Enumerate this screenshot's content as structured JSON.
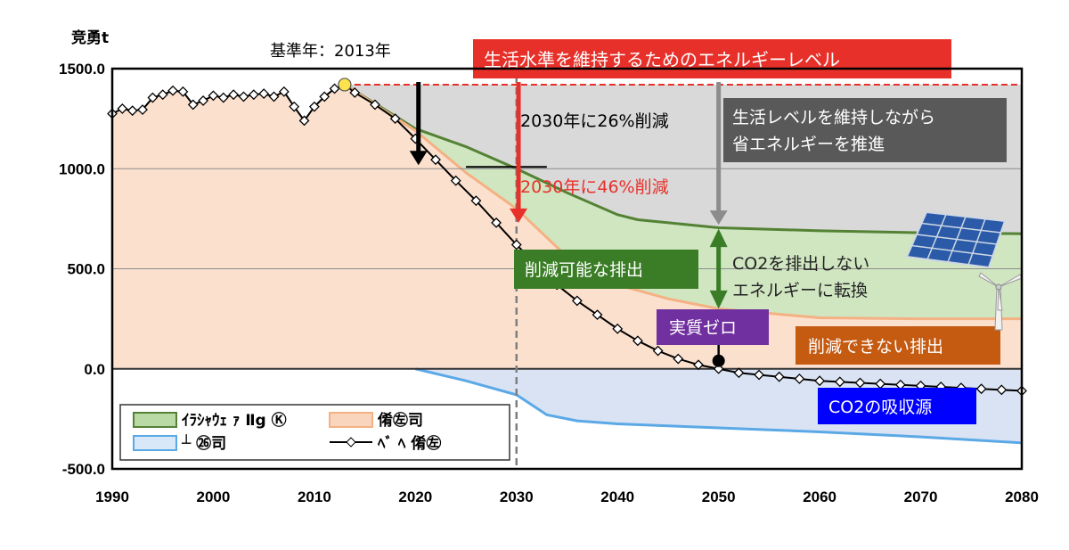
{
  "chart_data": {
    "type": "area",
    "ylabel": "竞勇t",
    "base_year_label": "基準年：2013年",
    "ylim": [
      -500,
      1500
    ],
    "xlim": [
      1990,
      2080
    ],
    "y_ticks": [
      "1500.0",
      "1000.0",
      "500.0",
      "0.0",
      "-500.0"
    ],
    "y_tick_values": [
      1500,
      1000,
      500,
      0,
      -500
    ],
    "x_ticks": [
      "1990",
      "2000",
      "2010",
      "2020",
      "2030",
      "2040",
      "2050",
      "2060",
      "2070",
      "2080"
    ],
    "x_tick_values": [
      1990,
      2000,
      2010,
      2020,
      2030,
      2040,
      2050,
      2060,
      2070,
      2080
    ],
    "grid": "horizontal",
    "series": [
      {
        "name": "ｲﾗｼｬｳｪ ｧ Ⅱg Ⓚ",
        "color": "#a9d18e",
        "x": [
          2013,
          2020,
          2025,
          2030,
          2035,
          2040,
          2042,
          2050,
          2060,
          2070,
          2080
        ],
        "values": [
          1420,
          1200,
          1110,
          1000,
          880,
          770,
          745,
          705,
          690,
          680,
          675
        ]
      },
      {
        "name": "倄㊧司",
        "color": "#f8cbad",
        "x": [
          1990,
          1991,
          1992,
          1993,
          1994,
          1995,
          1996,
          1997,
          1998,
          1999,
          2000,
          2001,
          2002,
          2003,
          2004,
          2005,
          2006,
          2007,
          2008,
          2009,
          2010,
          2011,
          2012,
          2013,
          2020,
          2025,
          2030,
          2035,
          2040,
          2045,
          2050,
          2060,
          2070,
          2080
        ],
        "values": [
          1275,
          1300,
          1290,
          1295,
          1355,
          1370,
          1390,
          1385,
          1320,
          1340,
          1365,
          1355,
          1370,
          1360,
          1370,
          1375,
          1360,
          1385,
          1310,
          1240,
          1310,
          1360,
          1400,
          1420,
          1190,
          980,
          800,
          560,
          420,
          350,
          300,
          255,
          250,
          250
        ]
      },
      {
        "name": "┴ ㉖司",
        "color": "#5aa9e6",
        "x": [
          1990,
          2020,
          2025,
          2030,
          2033,
          2036,
          2040,
          2045,
          2050,
          2060,
          2070,
          2080
        ],
        "values": [
          0,
          0,
          -60,
          -130,
          -230,
          -260,
          -275,
          -285,
          -295,
          -315,
          -340,
          -370
        ]
      },
      {
        "name": "ﾍﾞ ﾍ 倄㊧",
        "color": "#000000",
        "x": [
          1990,
          1991,
          1992,
          1993,
          1994,
          1995,
          1996,
          1997,
          1998,
          1999,
          2000,
          2001,
          2002,
          2003,
          2004,
          2005,
          2006,
          2007,
          2008,
          2009,
          2010,
          2011,
          2012,
          2013,
          2014,
          2016,
          2018,
          2020,
          2022,
          2024,
          2026,
          2028,
          2030,
          2032,
          2034,
          2036,
          2038,
          2040,
          2042,
          2044,
          2046,
          2048,
          2050,
          2052,
          2054,
          2056,
          2058,
          2060,
          2062,
          2064,
          2066,
          2068,
          2070,
          2072,
          2074,
          2076,
          2078,
          2080
        ],
        "values": [
          1275,
          1300,
          1290,
          1295,
          1355,
          1370,
          1390,
          1385,
          1320,
          1340,
          1365,
          1355,
          1370,
          1360,
          1370,
          1375,
          1360,
          1385,
          1310,
          1240,
          1310,
          1360,
          1400,
          1420,
          1380,
          1320,
          1250,
          1150,
          1045,
          940,
          840,
          730,
          620,
          520,
          420,
          340,
          270,
          200,
          140,
          90,
          50,
          20,
          0,
          -20,
          -30,
          -40,
          -50,
          -60,
          -65,
          -70,
          -75,
          -80,
          -85,
          -90,
          -95,
          -100,
          -105,
          -110
        ]
      }
    ],
    "annotations": {
      "target_2030_26": "2030年に26%削減",
      "target_2030_46": "2030年に46%削減",
      "maintain_level": "生活水準を維持するためのエネルギーレベル",
      "save_energy": "生活レベルを維持しながら\n省エネルギーを推進",
      "reducible": "削減可能な排出",
      "convert": "CO2を排出しない\nエネルギーに転換",
      "net_zero": "実質ゼロ",
      "irreducible": "削減できない排出",
      "absorption": "CO2の吸収源"
    },
    "colors": {
      "red": "#e8302a",
      "gray_box": "#595959",
      "dark_green": "#3a7d26",
      "purple": "#7030a0",
      "brown": "#c55a11",
      "blue_box": "#0000ff"
    }
  }
}
